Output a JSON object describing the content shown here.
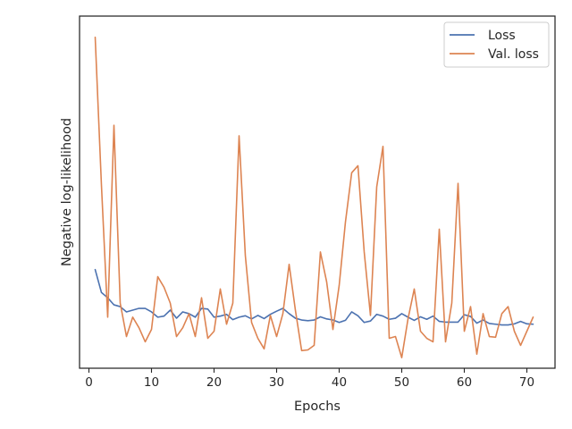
{
  "chart_data": {
    "type": "line",
    "title": "",
    "xlabel": "Epochs",
    "ylabel": "Negative log-likelihood",
    "xlim": [
      -1.5,
      74.5
    ],
    "ylim": [
      0,
      100
    ],
    "x_ticks": [
      0,
      10,
      20,
      30,
      40,
      50,
      60,
      70
    ],
    "x_tick_labels": [
      "0",
      "10",
      "20",
      "30",
      "40",
      "50",
      "60",
      "70"
    ],
    "y_ticks_visible": false,
    "grid": false,
    "legend": {
      "position": "top-right"
    },
    "x": [
      1,
      2,
      3,
      4,
      5,
      6,
      7,
      8,
      9,
      10,
      11,
      12,
      13,
      14,
      15,
      16,
      17,
      18,
      19,
      20,
      21,
      22,
      23,
      24,
      25,
      26,
      27,
      28,
      29,
      30,
      31,
      32,
      33,
      34,
      35,
      36,
      37,
      38,
      39,
      40,
      41,
      42,
      43,
      44,
      45,
      46,
      47,
      48,
      49,
      50,
      51,
      52,
      53,
      54,
      55,
      56,
      57,
      58,
      59,
      60,
      61,
      62,
      63,
      64,
      65,
      66,
      67,
      68,
      69,
      70,
      71
    ],
    "series": [
      {
        "name": "Loss",
        "color": "#4c72b0",
        "values": [
          28.0,
          21.5,
          20.0,
          18.0,
          17.5,
          16.0,
          16.5,
          17.0,
          17.0,
          16.0,
          14.5,
          14.8,
          16.5,
          14.2,
          16.0,
          15.5,
          14.5,
          17.0,
          16.8,
          14.5,
          14.8,
          15.3,
          13.8,
          14.5,
          14.9,
          14.0,
          15.0,
          14.1,
          15.3,
          16.2,
          17.0,
          15.5,
          14.2,
          13.7,
          13.5,
          13.7,
          14.6,
          14.0,
          13.7,
          13.0,
          13.6,
          16.0,
          14.9,
          13.0,
          13.4,
          15.3,
          14.8,
          13.9,
          14.2,
          15.5,
          14.5,
          13.6,
          14.6,
          13.9,
          14.8,
          13.3,
          13.1,
          13.1,
          13.1,
          15.2,
          14.7,
          12.8,
          13.7,
          12.7,
          12.5,
          12.3,
          12.3,
          12.6,
          13.3,
          12.6,
          12.5
        ]
      },
      {
        "name": "Val. loss",
        "color": "#dd8452",
        "values": [
          94.0,
          52.0,
          14.5,
          69.0,
          18.5,
          9.0,
          14.5,
          11.5,
          7.5,
          11.0,
          26.0,
          23.0,
          18.5,
          9.0,
          11.5,
          15.5,
          9.0,
          20.0,
          8.5,
          10.5,
          22.5,
          12.5,
          18.5,
          66.0,
          32.0,
          13.0,
          8.5,
          5.5,
          15.0,
          9.0,
          15.5,
          29.5,
          16.5,
          5.0,
          5.2,
          6.5,
          33.0,
          24.5,
          11.0,
          23.5,
          41.5,
          55.5,
          57.5,
          33.0,
          15.0,
          51.5,
          63.0,
          8.5,
          9.0,
          3.0,
          14.0,
          22.5,
          10.5,
          8.5,
          7.5,
          39.5,
          7.5,
          18.5,
          52.5,
          10.5,
          17.5,
          4.0,
          15.5,
          9.0,
          8.8,
          15.5,
          17.5,
          10.5,
          6.5,
          10.5,
          14.5
        ]
      }
    ]
  }
}
